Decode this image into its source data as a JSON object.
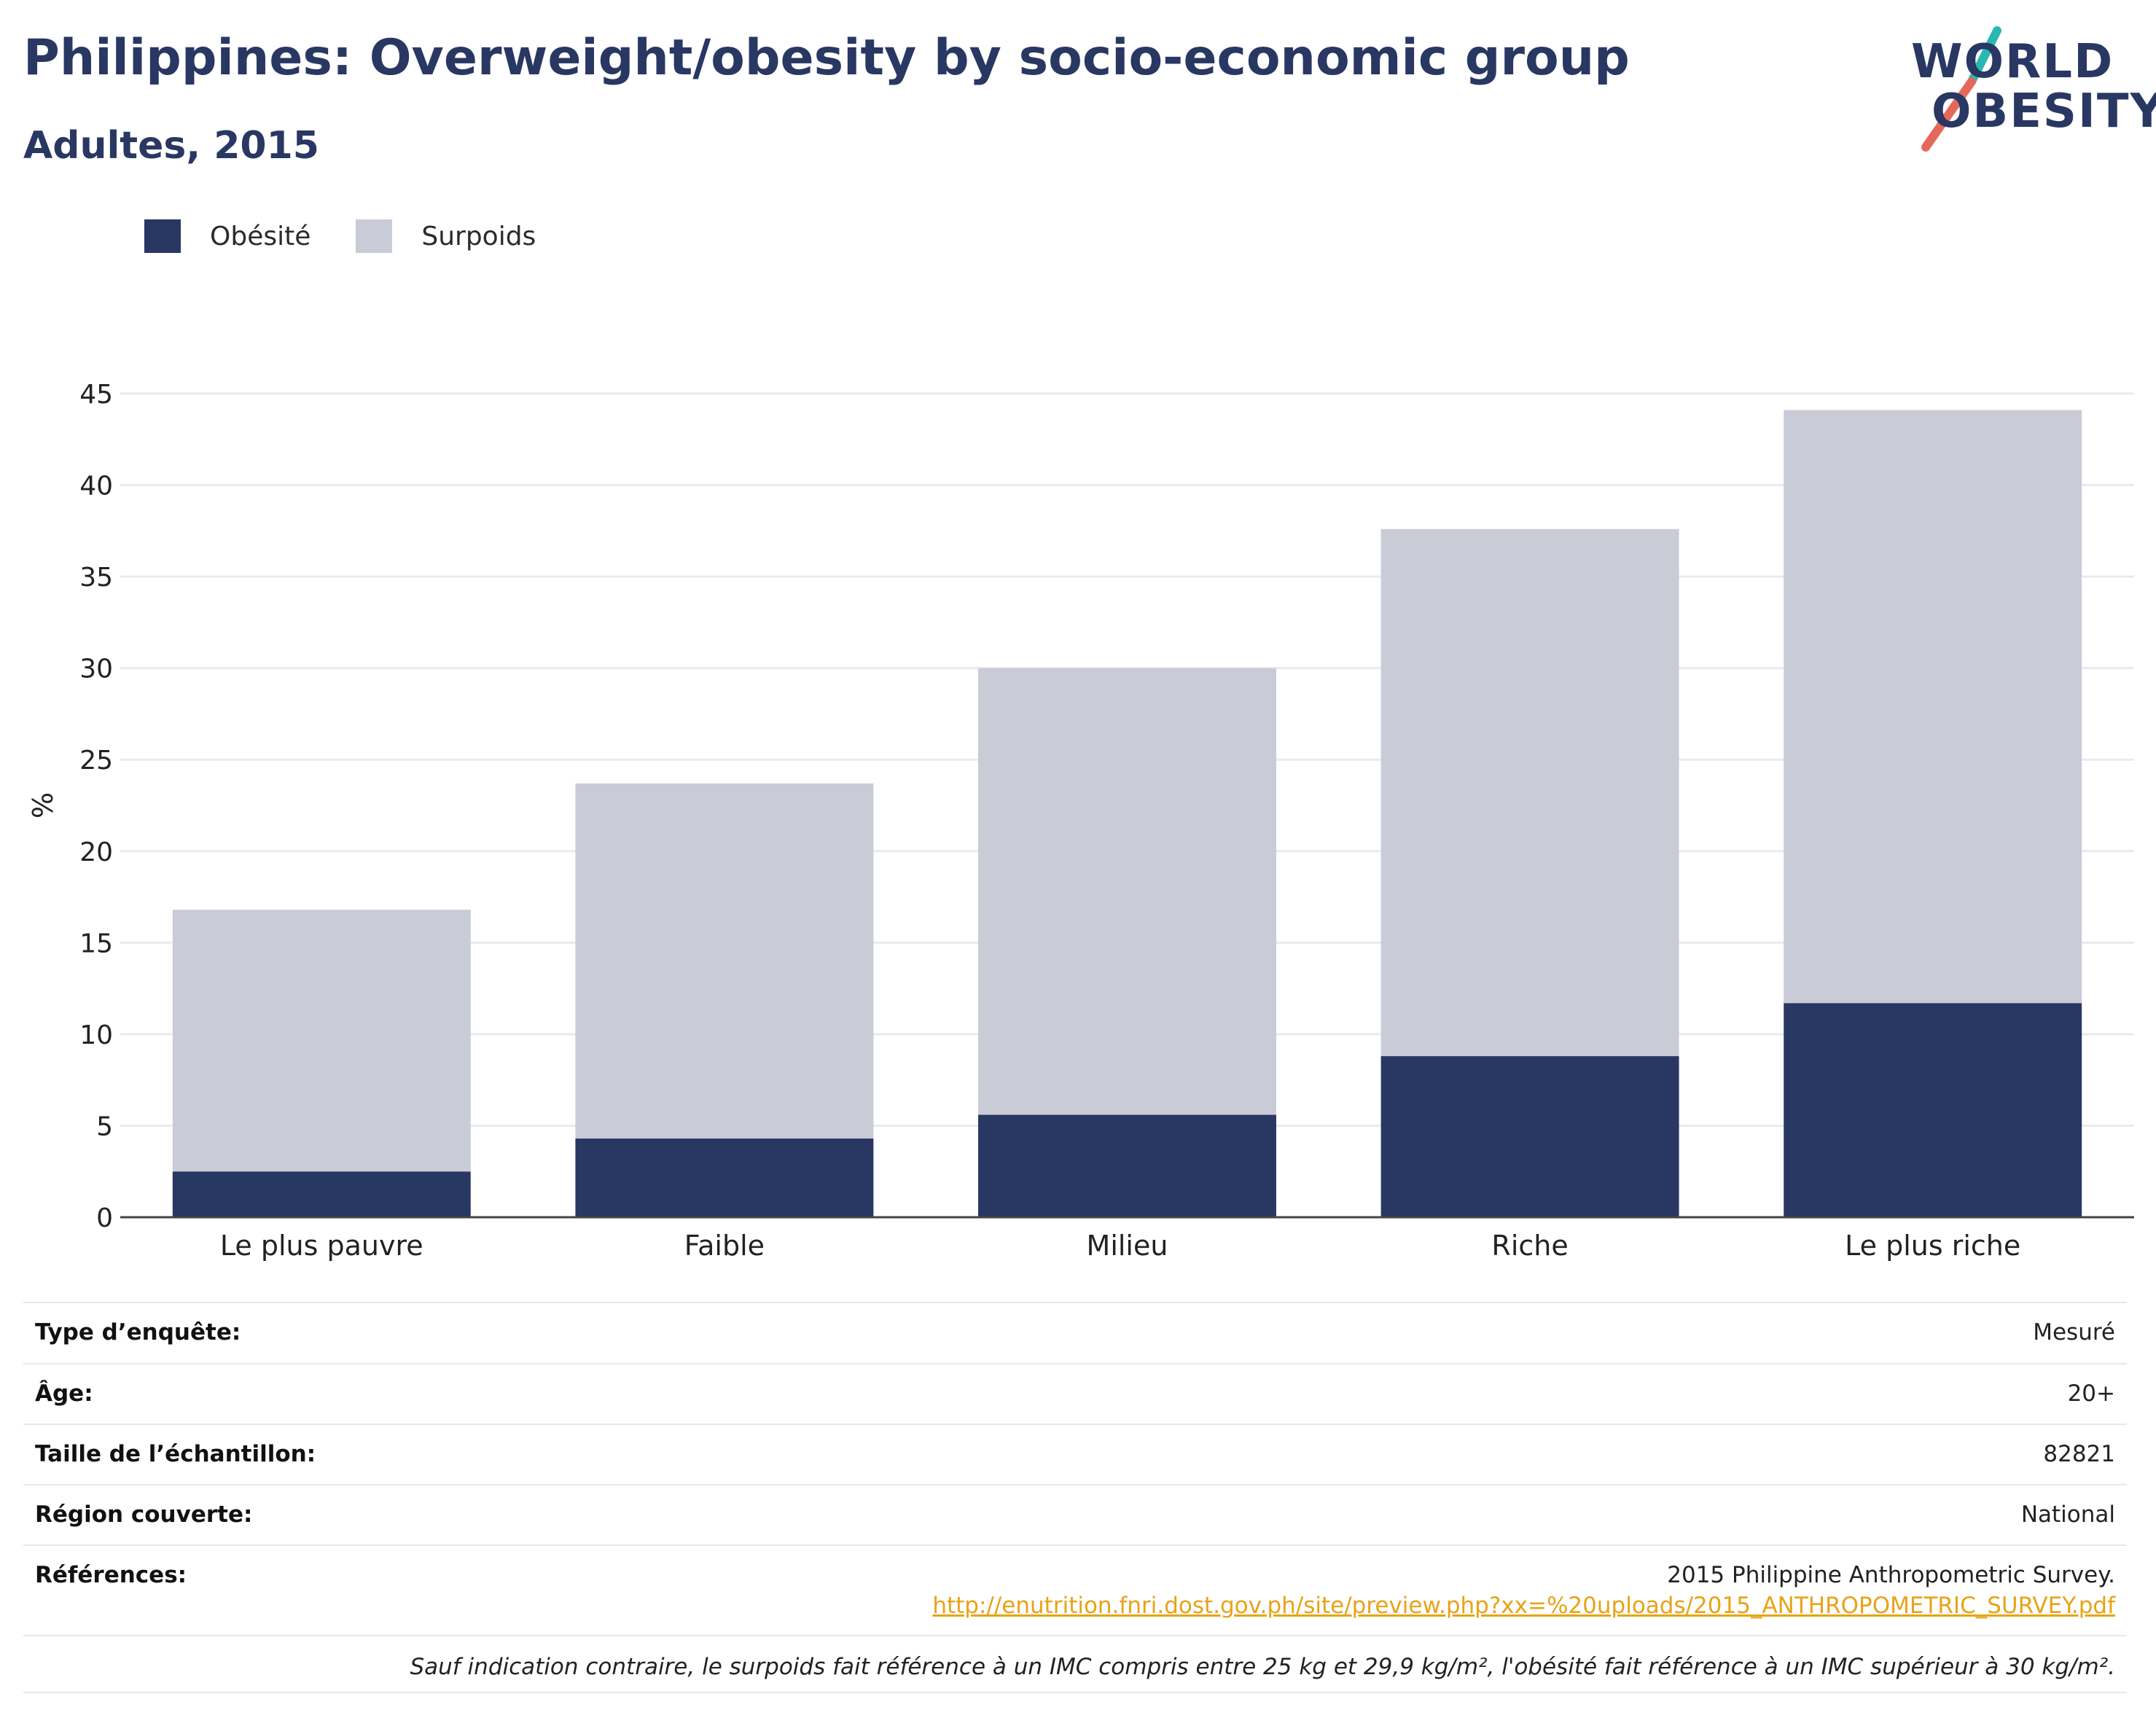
{
  "title": "Philippines: Overweight/obesity by socio-economic group",
  "subtitle": "Adultes, 2015",
  "logo": {
    "line1": "WORLD",
    "line2": "OBESITY"
  },
  "colors": {
    "obesity": "#293763",
    "overweight": "#c9cbd7",
    "title": "#293763",
    "link": "#e8a317",
    "logo_teal": "#2ab7b1",
    "logo_coral": "#e5695a"
  },
  "legend": [
    {
      "label": "Obésité",
      "color": "#293763"
    },
    {
      "label": "Surpoids",
      "color": "#c9cbd7"
    }
  ],
  "chart_data": {
    "type": "bar",
    "stacked": true,
    "categories": [
      "Le plus pauvre",
      "Faible",
      "Milieu",
      "Riche",
      "Le plus riche"
    ],
    "series": [
      {
        "name": "Obésité",
        "values": [
          2.5,
          4.3,
          5.6,
          8.8,
          11.7
        ]
      },
      {
        "name": "Surpoids",
        "values": [
          14.3,
          19.4,
          24.4,
          28.8,
          32.4
        ]
      }
    ],
    "ylabel": "%",
    "xlabel": "",
    "ylim": [
      0,
      45
    ],
    "yticks": [
      0,
      5,
      10,
      15,
      20,
      25,
      30,
      35,
      40,
      45
    ],
    "grid": true,
    "legend_position": "top-left"
  },
  "meta": {
    "survey_type": {
      "label": "Type d’enquête:",
      "value": "Mesuré"
    },
    "age": {
      "label": "Âge:",
      "value": "20+"
    },
    "sample_size": {
      "label": "Taille de l’échantillon:",
      "value": "82821"
    },
    "region": {
      "label": "Région couverte:",
      "value": "National"
    },
    "references": {
      "label": "Références:",
      "value": "2015 Philippine Anthropometric Survey.",
      "link": "http://enutrition.fnri.dost.gov.ph/site/preview.php?xx=%20uploads/2015_ANTHROPOMETRIC_SURVEY.pdf"
    },
    "footnote": "Sauf indication contraire, le surpoids fait référence à un IMC compris entre 25 kg et 29,9 kg/m², l'obésité fait référence à un IMC supérieur à 30 kg/m²."
  }
}
